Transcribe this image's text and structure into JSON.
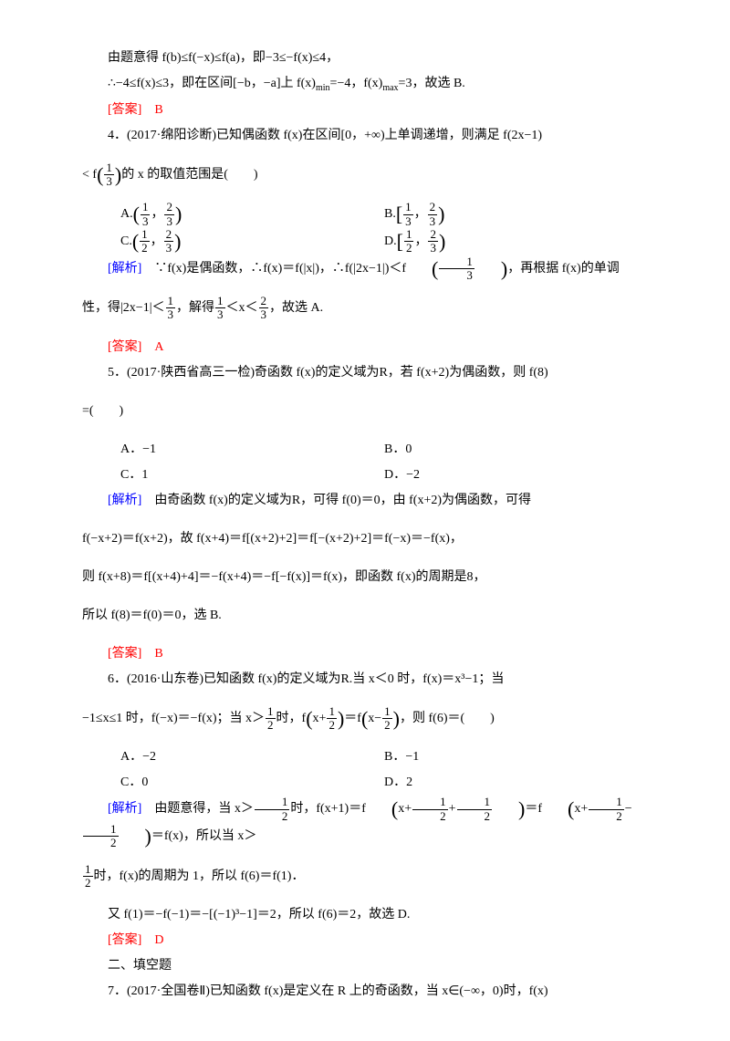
{
  "line1": "由题意得 f(b)≤f(−x)≤f(a)，即−3≤−f(x)≤4，",
  "line2_a": "∴−4≤f(x)≤3，即在区间[−b，−a]上 f(x)",
  "line2_b": "=−4，f(x)",
  "line2_c": "=3，故选 B.",
  "sub_min": "min",
  "sub_max": "max",
  "ans3": "[答案]　B",
  "q4_a": "4．(2017·绵阳诊断)已知偶函数 f(x)在区间[0，+∞)上单调递增，则满足 f(2x−1)",
  "q4_b": "< f",
  "q4_c": "的 x 的取值范围是(　　)",
  "optA": "A.",
  "optB": "B.",
  "optC": "C.",
  "optD": "D.",
  "sol4_label": "[解析]",
  "sol4_a": "∵f(x)是偶函数，∴f(x)＝f(|x|)，∴f(|2x−1|)＜f",
  "sol4_b": "，再根据 f(x)的单调",
  "sol4_line2a": "性，得|2x−1|＜",
  "sol4_line2b": "，解得",
  "sol4_line2c": "＜x＜",
  "sol4_line2d": "，故选 A.",
  "ans4": "[答案]　A",
  "q5_a": "5．(2017·陕西省高三一检)奇函数 f(x)的定义域为R，若 f(x+2)为偶函数，则 f(8)",
  "q5_b": "=(　　)",
  "q5_optA": "A．−1",
  "q5_optB": "B．0",
  "q5_optC": "C．1",
  "q5_optD": "D．−2",
  "sol5_label": "[解析]",
  "sol5_a": "由奇函数 f(x)的定义域为R，可得 f(0)＝0，由 f(x+2)为偶函数，可得",
  "sol5_b": "f(−x+2)＝f(x+2)，故 f(x+4)＝f[(x+2)+2]＝f[−(x+2)+2]＝f(−x)＝−f(x)，",
  "sol5_c": "则 f(x+8)＝f[(x+4)+4]＝−f(x+4)＝−f[−f(x)]＝f(x)，即函数 f(x)的周期是8，",
  "sol5_d": "所以 f(8)＝f(0)＝0，选 B.",
  "ans5": "[答案]　B",
  "q6_a": "6．(2016·山东卷)已知函数 f(x)的定义域为R.当 x＜0 时，f(x)＝x³−1；当",
  "q6_b": "−1≤x≤1 时，f(−x)＝−f(x)；当 x＞",
  "q6_c": "时，f",
  "q6_d": "＝f",
  "q6_e": "，则 f(6)＝(　　)",
  "q6_optA": "A．−2",
  "q6_optB": "B．−1",
  "q6_optC": "C．0",
  "q6_optD": "D．2",
  "sol6_label": "[解析]",
  "sol6_a": "由题意得，当 x＞",
  "sol6_b": "时，f(x+1)＝f",
  "sol6_c": "＝f",
  "sol6_d": "＝f(x)，所以当 x＞",
  "sol6_e": "时，f(x)的周期为 1，所以 f(6)＝f(1)．",
  "sol6_f": "又 f(1)＝−f(−1)＝−[(−1)³−1]＝2，所以 f(6)＝2，故选 D.",
  "ans6": "[答案]　D",
  "sec2": "二、填空题",
  "q7": "7．(2017·全国卷Ⅱ)已知函数 f(x)是定义在 R 上的奇函数，当 x∈(−∞，0)时，f(x)",
  "nums": {
    "1": "1",
    "2": "2",
    "3": "3"
  },
  "colors": {
    "red": "#ff0000",
    "blue": "#0000ff",
    "text": "#000000"
  }
}
